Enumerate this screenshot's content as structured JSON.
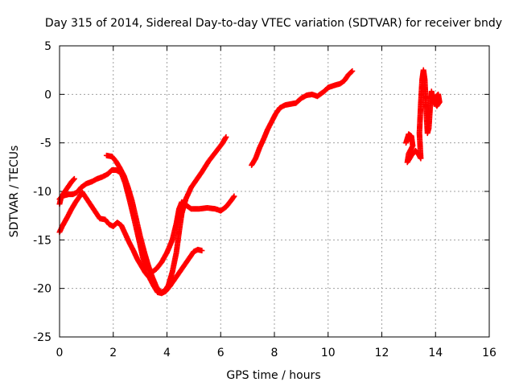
{
  "chart_data": {
    "type": "scatter",
    "title": "Day 315 of 2014, Sidereal Day-to-day VTEC variation (SDTVAR) for receiver bndy",
    "xlabel": "GPS time / hours",
    "ylabel": "SDTVAR / TECUs",
    "xlim": [
      0,
      16
    ],
    "ylim": [
      -25,
      5
    ],
    "xticks": [
      "0",
      "2",
      "4",
      "6",
      "8",
      "10",
      "12",
      "14",
      "16"
    ],
    "yticks": [
      "5",
      "0",
      "-5",
      "-10",
      "-15",
      "-20",
      "-25"
    ],
    "grid": true,
    "marker": "plus",
    "color": "#ff0000",
    "series": [
      {
        "points": [
          [
            0.0,
            -10.8
          ],
          [
            0.1,
            -10.5
          ],
          [
            0.2,
            -10.4
          ],
          [
            0.35,
            -10.3
          ],
          [
            0.5,
            -10.3
          ],
          [
            0.65,
            -10.1
          ],
          [
            0.8,
            -9.6
          ],
          [
            1.0,
            -9.2
          ],
          [
            1.2,
            -9.0
          ],
          [
            1.4,
            -8.7
          ],
          [
            1.6,
            -8.5
          ],
          [
            1.8,
            -8.2
          ],
          [
            1.95,
            -7.8
          ],
          [
            2.1,
            -7.8
          ],
          [
            2.3,
            -8.1
          ],
          [
            2.45,
            -9.2
          ],
          [
            2.6,
            -10.8
          ],
          [
            2.75,
            -12.5
          ],
          [
            2.9,
            -14.3
          ],
          [
            3.0,
            -15.5
          ],
          [
            3.1,
            -16.8
          ],
          [
            3.2,
            -17.6
          ],
          [
            3.3,
            -18.0
          ],
          [
            3.45,
            -18.3
          ],
          [
            3.6,
            -18.0
          ],
          [
            3.8,
            -17.3
          ],
          [
            4.0,
            -16.3
          ],
          [
            4.2,
            -15.0
          ],
          [
            4.35,
            -13.3
          ],
          [
            4.45,
            -11.8
          ],
          [
            4.55,
            -11.1
          ],
          [
            4.7,
            -11.4
          ],
          [
            4.9,
            -11.8
          ],
          [
            5.2,
            -11.8
          ],
          [
            5.5,
            -11.7
          ],
          [
            5.8,
            -11.8
          ],
          [
            6.0,
            -12.0
          ],
          [
            6.2,
            -11.6
          ],
          [
            6.4,
            -10.9
          ],
          [
            6.5,
            -10.5
          ]
        ]
      },
      {
        "points": [
          [
            0.0,
            -11.3
          ],
          [
            0.05,
            -10.7
          ],
          [
            0.15,
            -10.2
          ],
          [
            0.3,
            -9.6
          ],
          [
            0.45,
            -9.0
          ],
          [
            0.55,
            -8.7
          ],
          [
            1.75,
            -6.3
          ],
          [
            1.95,
            -6.4
          ],
          [
            2.1,
            -6.9
          ],
          [
            2.25,
            -7.6
          ],
          [
            2.4,
            -8.4
          ],
          [
            2.55,
            -9.6
          ],
          [
            2.7,
            -11.0
          ],
          [
            2.85,
            -12.8
          ],
          [
            3.0,
            -14.6
          ],
          [
            3.15,
            -16.2
          ],
          [
            3.3,
            -17.6
          ],
          [
            3.45,
            -18.8
          ],
          [
            3.6,
            -19.8
          ],
          [
            3.75,
            -20.4
          ],
          [
            3.9,
            -20.3
          ],
          [
            4.05,
            -19.7
          ],
          [
            4.2,
            -18.3
          ],
          [
            4.35,
            -16.3
          ],
          [
            4.45,
            -14.2
          ],
          [
            4.55,
            -12.3
          ],
          [
            4.7,
            -10.8
          ],
          [
            4.9,
            -9.6
          ],
          [
            5.1,
            -8.8
          ],
          [
            5.3,
            -8.0
          ],
          [
            5.55,
            -6.9
          ],
          [
            5.8,
            -6.0
          ],
          [
            6.05,
            -5.1
          ],
          [
            6.2,
            -4.4
          ]
        ]
      },
      {
        "points": [
          [
            0.0,
            -14.2
          ],
          [
            0.1,
            -13.6
          ],
          [
            0.2,
            -13.1
          ],
          [
            0.3,
            -12.6
          ],
          [
            0.45,
            -11.8
          ],
          [
            0.6,
            -11.1
          ],
          [
            0.75,
            -10.5
          ],
          [
            0.85,
            -10.1
          ],
          [
            1.5,
            -12.8
          ],
          [
            1.7,
            -12.9
          ],
          [
            1.85,
            -13.4
          ],
          [
            2.0,
            -13.6
          ],
          [
            2.15,
            -13.2
          ],
          [
            2.3,
            -13.5
          ],
          [
            2.45,
            -14.4
          ],
          [
            2.6,
            -15.3
          ],
          [
            2.75,
            -16.1
          ],
          [
            2.9,
            -17.0
          ],
          [
            3.05,
            -17.7
          ],
          [
            3.2,
            -18.4
          ],
          [
            3.35,
            -18.9
          ],
          [
            3.5,
            -19.7
          ],
          [
            3.65,
            -20.4
          ],
          [
            3.8,
            -20.5
          ],
          [
            3.95,
            -20.3
          ],
          [
            4.1,
            -19.8
          ],
          [
            4.25,
            -19.2
          ],
          [
            4.4,
            -18.6
          ],
          [
            4.55,
            -18.0
          ],
          [
            4.7,
            -17.4
          ],
          [
            4.85,
            -16.8
          ],
          [
            5.0,
            -16.2
          ],
          [
            5.15,
            -16.0
          ],
          [
            5.3,
            -16.1
          ]
        ]
      },
      {
        "points": [
          [
            7.15,
            -7.3
          ],
          [
            7.3,
            -6.6
          ],
          [
            7.45,
            -5.5
          ],
          [
            7.6,
            -4.6
          ],
          [
            7.75,
            -3.6
          ],
          [
            7.9,
            -2.8
          ],
          [
            8.05,
            -2.0
          ],
          [
            8.2,
            -1.4
          ],
          [
            8.4,
            -1.1
          ],
          [
            8.6,
            -1.0
          ],
          [
            8.8,
            -0.9
          ],
          [
            9.0,
            -0.4
          ],
          [
            9.2,
            -0.1
          ],
          [
            9.4,
            0.0
          ],
          [
            9.6,
            -0.2
          ],
          [
            9.85,
            0.3
          ],
          [
            10.0,
            0.7
          ],
          [
            10.2,
            0.9
          ],
          [
            10.45,
            1.1
          ],
          [
            10.6,
            1.4
          ],
          [
            10.75,
            2.0
          ],
          [
            10.9,
            2.4
          ]
        ]
      },
      {
        "points": [
          [
            12.9,
            -5.0
          ],
          [
            13.0,
            -4.1
          ],
          [
            13.1,
            -4.3
          ],
          [
            13.15,
            -5.3
          ],
          [
            13.0,
            -6.1
          ],
          [
            12.95,
            -7.0
          ],
          [
            13.1,
            -6.3
          ],
          [
            13.25,
            -5.8
          ],
          [
            13.35,
            -6.1
          ],
          [
            13.45,
            -6.6
          ],
          [
            13.4,
            -4.0
          ],
          [
            13.45,
            -1.0
          ],
          [
            13.5,
            1.5
          ],
          [
            13.55,
            2.5
          ],
          [
            13.6,
            1.5
          ],
          [
            13.65,
            -1.5
          ],
          [
            13.7,
            -4.0
          ],
          [
            13.75,
            -3.5
          ],
          [
            13.8,
            -1.3
          ],
          [
            13.85,
            0.3
          ],
          [
            13.9,
            -0.5
          ],
          [
            13.95,
            -1.0
          ],
          [
            14.0,
            -0.3
          ],
          [
            14.1,
            0.0
          ],
          [
            14.15,
            -0.8
          ],
          [
            14.05,
            -1.2
          ],
          [
            13.9,
            -0.2
          ],
          [
            13.8,
            -0.3
          ]
        ]
      }
    ]
  }
}
